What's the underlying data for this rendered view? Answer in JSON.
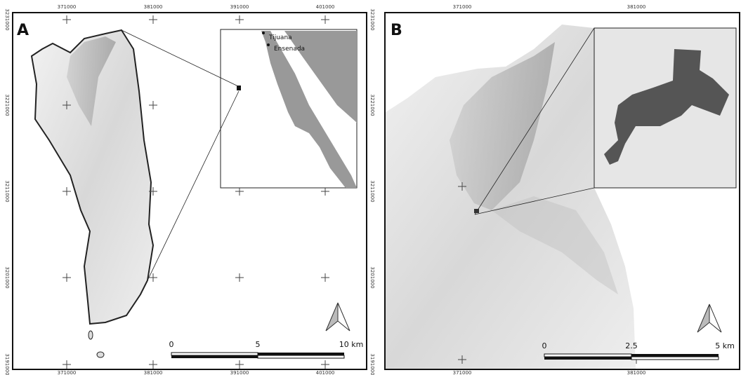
{
  "panel_a": {
    "label": "A",
    "top_x": [
      "371000",
      "381000",
      "391000",
      "401000"
    ],
    "bottom_x": [
      "371000",
      "381000",
      "391000",
      "401000"
    ],
    "left_y": [
      "3231000",
      "3221000",
      "3211000",
      "3201000",
      "3191000"
    ],
    "right_y": [
      "3231000",
      "3221000",
      "3211000",
      "3201000",
      "3191000"
    ],
    "places": [
      "Tijuana",
      "Ensenada"
    ],
    "scale": [
      "0",
      "5",
      "10 km"
    ]
  },
  "panel_b": {
    "label": "B",
    "top_x": [
      "371000",
      "381000"
    ],
    "bottom_x": [
      "371000",
      "381000"
    ],
    "scale": [
      "0",
      "2.5",
      "5 km"
    ]
  }
}
